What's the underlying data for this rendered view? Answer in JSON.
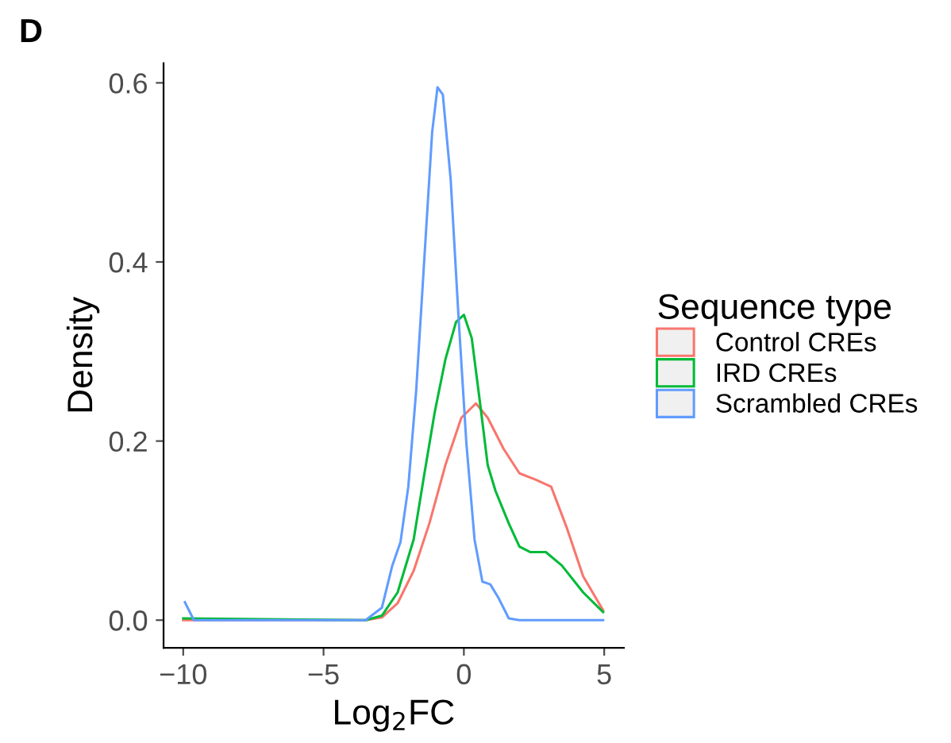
{
  "chart_data": {
    "type": "line",
    "xlabel": "Log$_{2}$FC",
    "ylabel": "Density",
    "legend_title": "Sequence type",
    "annotations": [
      "D"
    ],
    "xlim": [
      -10.7,
      5.7
    ],
    "xticks": [
      {
        "value": -10,
        "label": "−10"
      },
      {
        "value": -5,
        "label": "−5"
      },
      0,
      5
    ],
    "ylim": [
      -0.031,
      0.622
    ],
    "yticks": [
      {
        "value": 0,
        "label": "0.0"
      },
      0.2,
      0.4,
      0.6
    ],
    "grid": false,
    "legend": "right",
    "marker": "none",
    "line_style": "solid",
    "series": [
      {
        "name": "Control CREs",
        "color": "#f8766d",
        "x": [
          -10,
          -3.5,
          -2.92,
          -2.36,
          -1.79,
          -1.23,
          -0.66,
          -0.09,
          0.43,
          0.85,
          1.42,
          1.98,
          2.55,
          3.11,
          3.68,
          4.25,
          4.96
        ],
        "values": [
          0,
          0,
          0.003,
          0.019,
          0.055,
          0.108,
          0.173,
          0.226,
          0.242,
          0.226,
          0.191,
          0.164,
          0.157,
          0.149,
          0.102,
          0.049,
          0.011
        ]
      },
      {
        "name": "IRD CREs",
        "color": "#00ba38",
        "x": [
          -10,
          -3.5,
          -2.92,
          -2.36,
          -1.79,
          -1.42,
          -1.04,
          -0.66,
          -0.28,
          0,
          0.28,
          0.57,
          0.85,
          1.13,
          1.6,
          1.98,
          2.36,
          2.92,
          3.49,
          4.25,
          4.96
        ],
        "values": [
          0.002,
          0,
          0.005,
          0.031,
          0.09,
          0.161,
          0.232,
          0.291,
          0.333,
          0.341,
          0.315,
          0.244,
          0.173,
          0.144,
          0.108,
          0.082,
          0.076,
          0.076,
          0.061,
          0.031,
          0.009
        ]
      },
      {
        "name": "Scrambled CREs",
        "color": "#619cff",
        "x": [
          -9.94,
          -9.62,
          -3.5,
          -2.92,
          -2.55,
          -2.26,
          -1.98,
          -1.7,
          -1.42,
          -1.13,
          -0.94,
          -0.75,
          -0.47,
          -0.19,
          0.09,
          0.38,
          0.66,
          0.94,
          1.23,
          1.6,
          1.98,
          4.96
        ],
        "values": [
          0.02,
          0,
          0,
          0.014,
          0.061,
          0.087,
          0.149,
          0.256,
          0.398,
          0.545,
          0.595,
          0.587,
          0.492,
          0.338,
          0.197,
          0.09,
          0.043,
          0.04,
          0.025,
          0.002,
          0,
          0
        ]
      }
    ]
  }
}
